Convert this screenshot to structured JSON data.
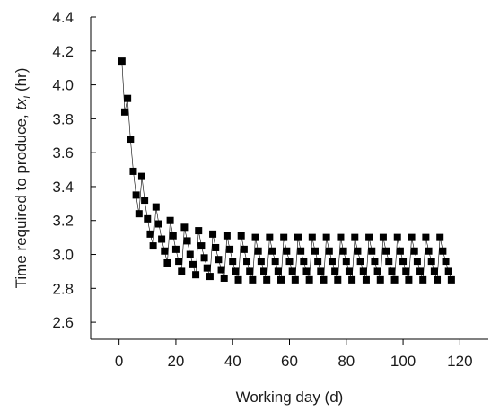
{
  "chart_data": {
    "type": "scatter",
    "xlabel": "Working day (d)",
    "ylabel_main": "Time required to produce, ",
    "ylabel_var": "tx",
    "ylabel_sub": "i",
    "ylabel_unit": " (hr)",
    "xlim": [
      -10,
      130
    ],
    "ylim": [
      2.5,
      4.4
    ],
    "xticks": [
      0,
      20,
      40,
      60,
      80,
      100,
      120
    ],
    "yticks": [
      2.6,
      2.8,
      3.0,
      3.2,
      3.4,
      3.6,
      3.8,
      4.0,
      4.2,
      4.4
    ],
    "ytick_labels": [
      "2.6",
      "2.8",
      "3.0",
      "3.2",
      "3.4",
      "3.6",
      "3.8",
      "4.0",
      "4.2",
      "4.4"
    ],
    "grid": false,
    "legend": "none",
    "marker": "square",
    "color": "#000000",
    "series": [
      {
        "x": [
          1,
          2,
          3,
          4,
          5,
          6,
          7,
          8,
          9,
          10,
          11,
          12,
          13,
          14,
          15,
          16,
          17,
          18,
          19,
          20,
          21,
          22,
          23,
          24,
          25,
          26,
          27,
          28,
          29,
          30,
          31,
          32,
          33,
          34,
          35,
          36,
          37,
          38,
          39,
          40,
          41,
          42,
          43,
          44,
          45,
          46,
          47,
          48,
          49,
          50,
          51,
          52,
          53,
          54,
          55,
          56,
          57,
          58,
          59,
          60,
          61,
          62,
          63,
          64,
          65,
          66,
          67,
          68,
          69,
          70,
          71,
          72,
          73,
          74,
          75,
          76,
          77,
          78,
          79,
          80,
          81,
          82,
          83,
          84,
          85,
          86,
          87,
          88,
          89,
          90,
          91,
          92,
          93,
          94,
          95,
          96,
          97,
          98,
          99,
          100,
          101,
          102,
          103,
          104,
          105,
          106,
          107,
          108,
          109,
          110,
          111,
          112,
          113,
          114,
          115,
          116,
          117
        ],
        "y": [
          4.14,
          3.84,
          3.92,
          3.68,
          3.49,
          3.35,
          3.24,
          3.46,
          3.32,
          3.21,
          3.12,
          3.05,
          3.28,
          3.18,
          3.09,
          3.02,
          2.95,
          3.2,
          3.11,
          3.03,
          2.96,
          2.9,
          3.16,
          3.08,
          3.0,
          2.94,
          2.88,
          3.14,
          3.05,
          2.98,
          2.92,
          2.87,
          3.12,
          3.04,
          2.97,
          2.91,
          2.86,
          3.11,
          3.03,
          2.96,
          2.9,
          2.85,
          3.11,
          3.03,
          2.96,
          2.9,
          2.85,
          3.1,
          3.02,
          2.96,
          2.9,
          2.85,
          3.1,
          3.02,
          2.96,
          2.9,
          2.85,
          3.1,
          3.02,
          2.96,
          2.9,
          2.85,
          3.1,
          3.02,
          2.96,
          2.9,
          2.85,
          3.1,
          3.02,
          2.96,
          2.9,
          2.85,
          3.1,
          3.02,
          2.96,
          2.9,
          2.85,
          3.1,
          3.02,
          2.96,
          2.9,
          2.85,
          3.1,
          3.02,
          2.96,
          2.9,
          2.85,
          3.1,
          3.02,
          2.96,
          2.9,
          2.85,
          3.1,
          3.02,
          2.96,
          2.9,
          2.85,
          3.1,
          3.02,
          2.96,
          2.9,
          2.85,
          3.1,
          3.02,
          2.96,
          2.9,
          2.85,
          3.1,
          3.02,
          2.96,
          2.9,
          2.85,
          3.1,
          3.02,
          2.96,
          2.9,
          2.85
        ]
      }
    ]
  }
}
